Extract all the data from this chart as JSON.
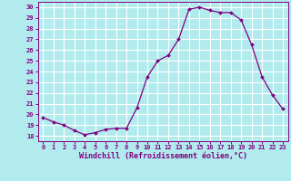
{
  "x": [
    0,
    1,
    2,
    3,
    4,
    5,
    6,
    7,
    8,
    9,
    10,
    11,
    12,
    13,
    14,
    15,
    16,
    17,
    18,
    19,
    20,
    21,
    22,
    23
  ],
  "y": [
    19.7,
    19.3,
    19.0,
    18.5,
    18.1,
    18.3,
    18.6,
    18.7,
    18.7,
    20.6,
    23.5,
    25.0,
    25.5,
    27.0,
    29.8,
    30.0,
    29.7,
    29.5,
    29.5,
    28.8,
    26.5,
    23.5,
    21.8,
    20.5
  ],
  "line_color": "#800080",
  "marker": "D",
  "marker_size": 2,
  "bg_color": "#b2ebee",
  "grid_color": "#ffffff",
  "xlabel": "Windchill (Refroidissement éolien,°C)",
  "tick_color": "#800080",
  "ylim": [
    17.5,
    30.5
  ],
  "xlim": [
    -0.5,
    23.5
  ],
  "yticks": [
    18,
    19,
    20,
    21,
    22,
    23,
    24,
    25,
    26,
    27,
    28,
    29,
    30
  ],
  "xticks": [
    0,
    1,
    2,
    3,
    4,
    5,
    6,
    7,
    8,
    9,
    10,
    11,
    12,
    13,
    14,
    15,
    16,
    17,
    18,
    19,
    20,
    21,
    22,
    23
  ],
  "xtick_labels": [
    "0",
    "1",
    "2",
    "3",
    "4",
    "5",
    "6",
    "7",
    "8",
    "9",
    "10",
    "11",
    "12",
    "13",
    "14",
    "15",
    "16",
    "17",
    "18",
    "19",
    "20",
    "21",
    "22",
    "23"
  ],
  "ytick_labels": [
    "18",
    "19",
    "20",
    "21",
    "22",
    "23",
    "24",
    "25",
    "26",
    "27",
    "28",
    "29",
    "30"
  ]
}
